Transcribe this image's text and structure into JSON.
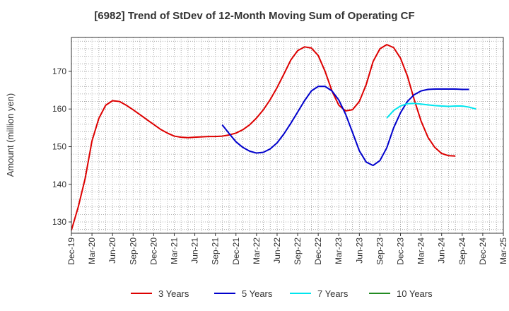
{
  "chart_data": {
    "type": "line",
    "title": "[6982]  Trend of StDev of 12-Month Moving Sum of Operating CF",
    "xlabel": "",
    "ylabel": "Amount (million yen)",
    "ylim": [
      127,
      179
    ],
    "yticks": [
      130,
      140,
      150,
      160,
      170
    ],
    "x_tick_labels": [
      "Dec-19",
      "Mar-20",
      "Jun-20",
      "Sep-20",
      "Dec-20",
      "Mar-21",
      "Jun-21",
      "Sep-21",
      "Dec-21",
      "Mar-22",
      "Jun-22",
      "Sep-22",
      "Dec-22",
      "Mar-23",
      "Jun-23",
      "Sep-23",
      "Dec-23",
      "Mar-24",
      "Jun-24",
      "Sep-24",
      "Dec-24",
      "Mar-25"
    ],
    "grid": true,
    "legend_position": "bottom",
    "series": [
      {
        "name": "3 Years",
        "color": "#dd0000",
        "start_index": 0,
        "values": [
          127.8,
          134.0,
          141.5,
          151.5,
          157.5,
          161.0,
          162.2,
          162.0,
          161.0,
          159.8,
          158.5,
          157.2,
          155.9,
          154.6,
          153.6,
          152.8,
          152.5,
          152.4,
          152.5,
          152.6,
          152.7,
          152.7,
          152.8,
          153.1,
          153.6,
          154.5,
          155.8,
          157.6,
          159.8,
          162.5,
          165.7,
          169.3,
          173.0,
          175.5,
          176.5,
          176.2,
          174.2,
          170.0,
          164.8,
          161.0,
          159.5,
          159.8,
          162.0,
          166.5,
          172.6,
          176.0,
          177.1,
          176.3,
          173.5,
          168.8,
          162.5,
          156.8,
          152.5,
          149.8,
          148.2,
          147.6,
          147.5
        ]
      },
      {
        "name": "5 Years",
        "color": "#0000cc",
        "start_index": 22,
        "values": [
          155.8,
          153.5,
          151.3,
          149.8,
          148.8,
          148.3,
          148.5,
          149.4,
          151.0,
          153.4,
          156.2,
          159.2,
          162.2,
          164.8,
          166.0,
          166.0,
          164.8,
          162.4,
          158.6,
          153.8,
          148.9,
          145.9,
          145.0,
          146.3,
          149.7,
          155.0,
          159.0,
          162.0,
          163.8,
          164.8,
          165.2,
          165.3,
          165.3,
          165.3,
          165.3,
          165.2,
          165.2
        ]
      },
      {
        "name": "7 Years",
        "color": "#00e5ee",
        "start_index": 46,
        "values": [
          157.6,
          159.6,
          160.8,
          161.4,
          161.5,
          161.3,
          161.1,
          160.9,
          160.8,
          160.7,
          160.8,
          160.8,
          160.5,
          160.0
        ]
      },
      {
        "name": "10 Years",
        "color": "#228b22",
        "start_index": 46,
        "values": []
      }
    ]
  }
}
